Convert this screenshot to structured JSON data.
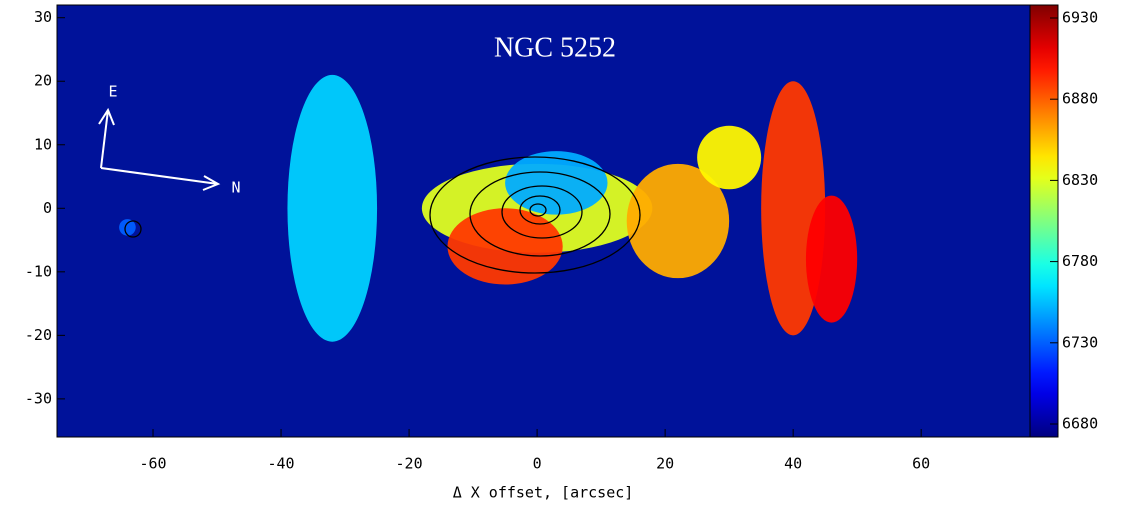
{
  "chart_data": {
    "type": "velocity-map",
    "title": "NGC 5252",
    "xlabel": "Δ X offset, [arcsec]",
    "compass": {
      "east": "E",
      "north": "N"
    },
    "background": "#00129a",
    "xlim": [
      -75,
      77
    ],
    "xticks": [
      -60,
      -40,
      -20,
      0,
      20,
      40,
      60
    ],
    "ylim": [
      -36,
      32
    ],
    "yticks": [
      -30,
      -20,
      -10,
      0,
      10,
      20,
      30
    ],
    "clim": [
      6672,
      6938
    ],
    "cticks": [
      6680,
      6730,
      6780,
      6830,
      6880,
      6930
    ],
    "patches": [
      {
        "x": -32,
        "y": 0,
        "rx": 7,
        "ry": 21,
        "value": 6760
      },
      {
        "x": 0,
        "y": 0,
        "rx": 18,
        "ry": 7,
        "value": 6830
      },
      {
        "x": 3,
        "y": 4,
        "rx": 8,
        "ry": 5,
        "value": 6750
      },
      {
        "x": -5,
        "y": -6,
        "rx": 9,
        "ry": 6,
        "value": 6890
      },
      {
        "x": 22,
        "y": -2,
        "rx": 8,
        "ry": 9,
        "value": 6860
      },
      {
        "x": 30,
        "y": 8,
        "rx": 5,
        "ry": 5,
        "value": 6840
      },
      {
        "x": 40,
        "y": 0,
        "rx": 5,
        "ry": 20,
        "value": 6890
      },
      {
        "x": 46,
        "y": -8,
        "rx": 4,
        "ry": 10,
        "value": 6905
      },
      {
        "x": -64,
        "y": -3,
        "rx": 1.3,
        "ry": 1.3,
        "value": 6730
      }
    ]
  }
}
